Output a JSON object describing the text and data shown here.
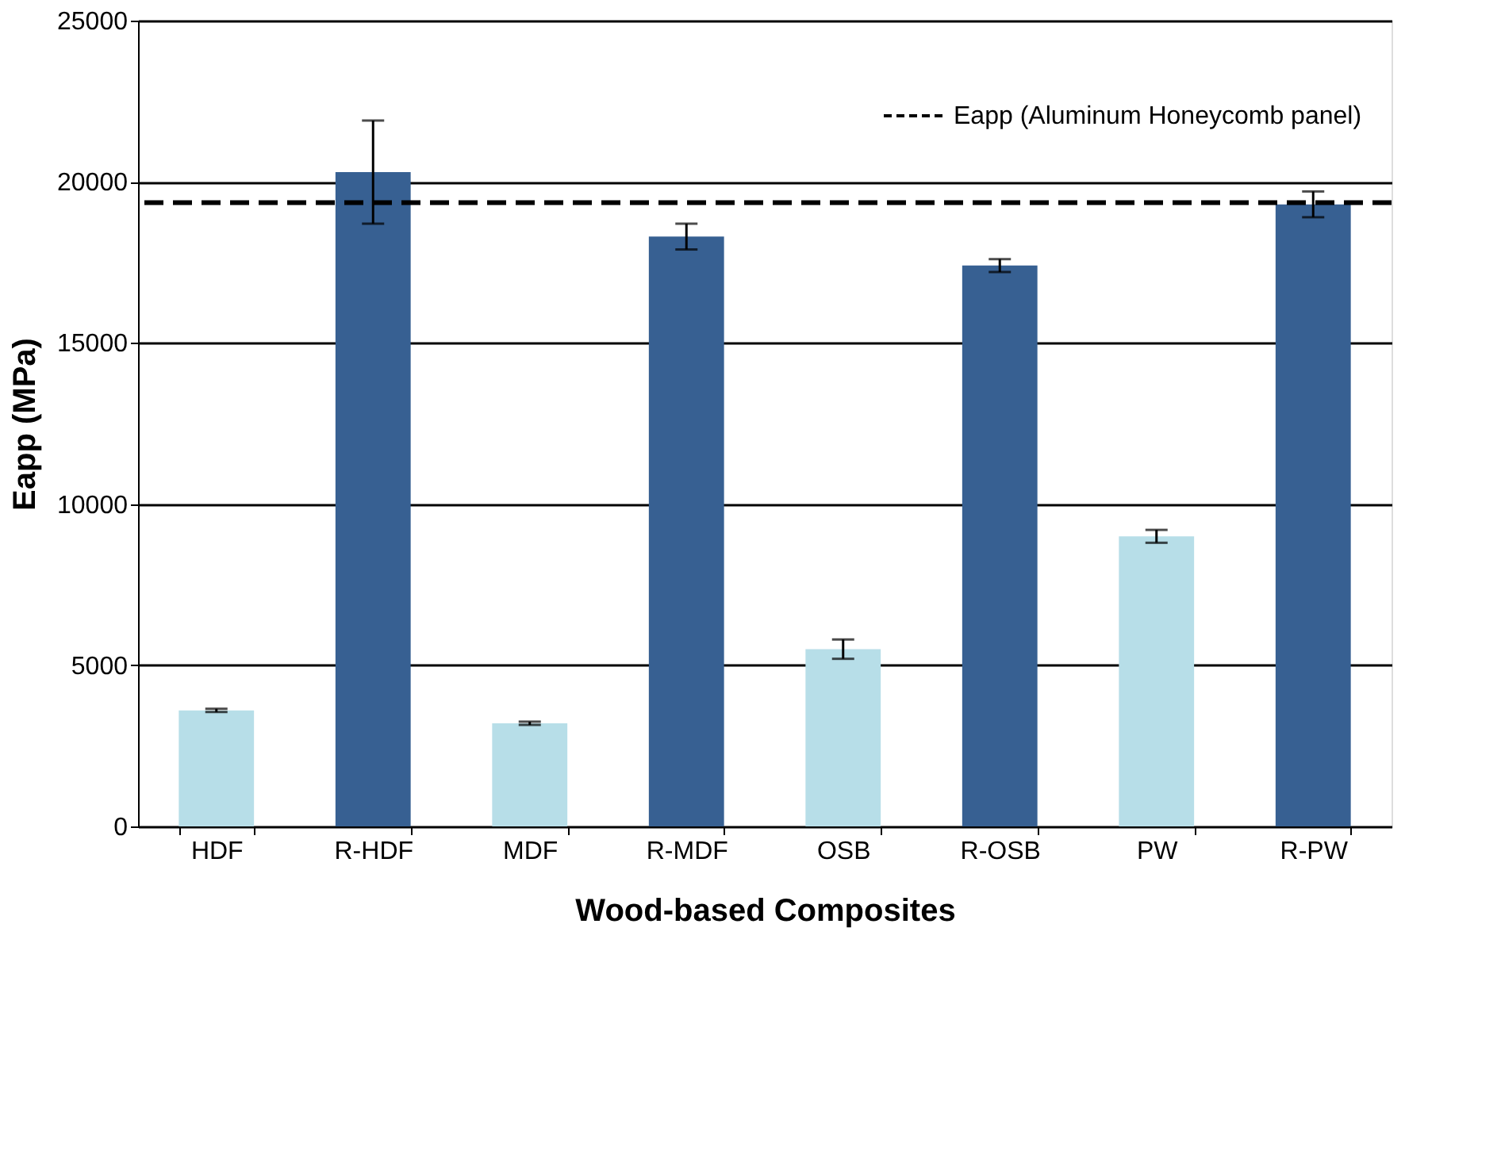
{
  "chart_data": {
    "type": "bar",
    "xlabel": "Wood-based Composites",
    "ylabel": "Eapp (MPa)",
    "categories": [
      "HDF",
      "R-HDF",
      "MDF",
      "R-MDF",
      "OSB",
      "R-OSB",
      "PW",
      "R-PW"
    ],
    "values": [
      3600,
      20300,
      3200,
      18300,
      5500,
      17400,
      9000,
      19300
    ],
    "colors": [
      "#b7dee8",
      "#376092",
      "#b7dee8",
      "#376092",
      "#b7dee8",
      "#376092",
      "#b7dee8",
      "#376092"
    ],
    "errors": [
      50,
      1600,
      50,
      400,
      300,
      200,
      200,
      400
    ],
    "ylim": [
      0,
      25000
    ],
    "yticks": [
      0,
      5000,
      10000,
      15000,
      20000,
      25000
    ],
    "grid": "y",
    "ref_lines": [
      {
        "axis": "y",
        "value": 19350,
        "label": "Eapp (Aluminum Honeycomb panel)",
        "color": "#000000",
        "line_style": "dashed"
      }
    ]
  }
}
